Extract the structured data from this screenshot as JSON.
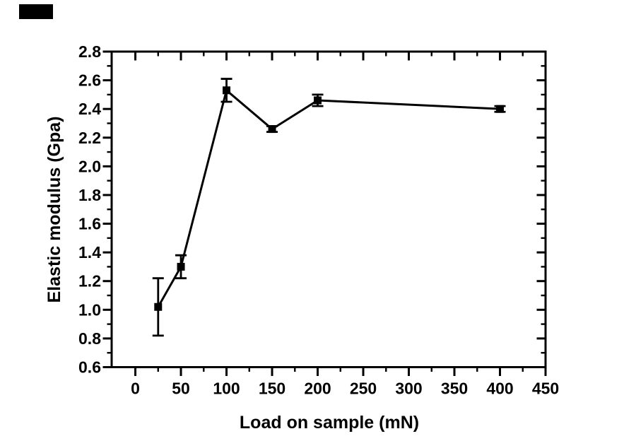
{
  "figure": {
    "background_color": "#ffffff",
    "ink_color": "#000000",
    "note": "scanned journal figure, black scan artifact block in top-left corner"
  },
  "chart_data": {
    "type": "line",
    "title": "",
    "xlabel": "Load on sample (mN)",
    "ylabel": "Elastic modulus (Gpa)",
    "frame": "box",
    "grid": false,
    "legend": null,
    "xlim": [
      -26,
      450
    ],
    "ylim": [
      0.6,
      2.8
    ],
    "x_major_ticks": [
      0,
      50,
      100,
      150,
      200,
      250,
      300,
      350,
      400,
      450
    ],
    "x_tick_labels": [
      "0",
      "50",
      "100",
      "150",
      "200",
      "250",
      "300",
      "350",
      "400",
      "450"
    ],
    "x_minor_ticks": [
      25,
      75,
      125,
      175,
      225,
      275,
      325,
      375,
      425
    ],
    "y_major_ticks": [
      0.6,
      0.8,
      1.0,
      1.2,
      1.4,
      1.6,
      1.8,
      2.0,
      2.2,
      2.4,
      2.6,
      2.8
    ],
    "y_tick_labels": [
      "0.6",
      "0.8",
      "1.0",
      "1.2",
      "1.4",
      "1.6",
      "1.8",
      "2.0",
      "2.2",
      "2.4",
      "2.6",
      "2.8"
    ],
    "y_minor_ticks": [
      0.7,
      0.9,
      1.1,
      1.3,
      1.5,
      1.7,
      1.9,
      2.1,
      2.3,
      2.5,
      2.7
    ],
    "tick_direction": {
      "bottom": "out",
      "left": "out",
      "top": "in",
      "right": "in"
    },
    "series": [
      {
        "name": "elastic modulus vs load",
        "marker": "filled-square",
        "color": "#000000",
        "points": [
          {
            "x": 25,
            "y": 1.02,
            "yerr": 0.2
          },
          {
            "x": 50,
            "y": 1.3,
            "yerr": 0.08
          },
          {
            "x": 100,
            "y": 2.53,
            "yerr": 0.08
          },
          {
            "x": 150,
            "y": 2.26,
            "yerr": 0.02
          },
          {
            "x": 200,
            "y": 2.46,
            "yerr": 0.04
          },
          {
            "x": 400,
            "y": 2.4,
            "yerr": 0.02
          }
        ]
      }
    ]
  }
}
